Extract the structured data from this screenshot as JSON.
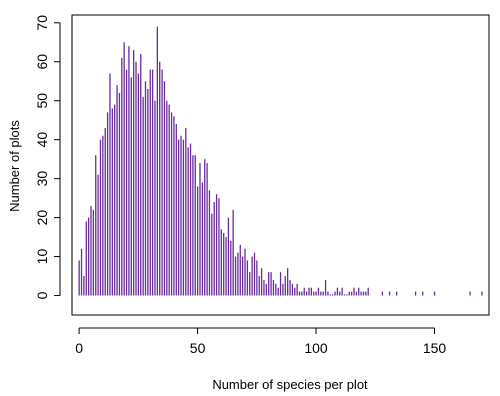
{
  "chart_data": {
    "type": "bar",
    "xlabel": "Number of species per plot",
    "ylabel": "Number of plots",
    "xlim": [
      -3,
      173
    ],
    "ylim": [
      -5,
      72
    ],
    "x_ticks": [
      0,
      50,
      100,
      150
    ],
    "y_ticks": [
      0,
      10,
      20,
      30,
      40,
      50,
      60,
      70
    ],
    "grid": false,
    "legend": "none",
    "bar_color": "#6a2c9a",
    "x": [
      0,
      1,
      2,
      3,
      4,
      5,
      6,
      7,
      8,
      9,
      10,
      11,
      12,
      13,
      14,
      15,
      16,
      17,
      18,
      19,
      20,
      21,
      22,
      23,
      24,
      25,
      26,
      27,
      28,
      29,
      30,
      31,
      32,
      33,
      34,
      35,
      36,
      37,
      38,
      39,
      40,
      41,
      42,
      43,
      44,
      45,
      46,
      47,
      48,
      49,
      50,
      51,
      52,
      53,
      54,
      55,
      56,
      57,
      58,
      59,
      60,
      61,
      62,
      63,
      64,
      65,
      66,
      67,
      68,
      69,
      70,
      71,
      72,
      73,
      74,
      75,
      76,
      77,
      78,
      79,
      80,
      81,
      82,
      83,
      84,
      85,
      86,
      87,
      88,
      89,
      90,
      91,
      92,
      93,
      94,
      95,
      96,
      97,
      98,
      99,
      100,
      101,
      102,
      103,
      104,
      105,
      106,
      107,
      108,
      109,
      110,
      111,
      112,
      113,
      114,
      115,
      116,
      117,
      118,
      119,
      120,
      121,
      122,
      128,
      131,
      134,
      142,
      145,
      150,
      165,
      170
    ],
    "values": [
      9,
      12,
      5,
      19,
      20,
      23,
      22,
      36,
      31,
      40,
      41,
      43,
      47,
      57,
      48,
      49,
      54,
      52,
      61,
      65,
      58,
      64,
      56,
      63,
      60,
      57,
      62,
      51,
      55,
      53,
      58,
      58,
      50,
      69,
      60,
      58,
      55,
      50,
      49,
      47,
      46,
      44,
      40,
      41,
      40,
      43,
      38,
      39,
      36,
      36,
      28,
      34,
      29,
      35,
      34,
      27,
      21,
      24,
      26,
      25,
      17,
      16,
      15,
      20,
      14,
      22,
      10,
      11,
      13,
      10,
      12,
      9,
      6,
      10,
      11,
      9,
      5,
      7,
      4,
      3,
      6,
      6,
      4,
      3,
      2,
      6,
      3,
      5,
      7,
      4,
      3,
      2,
      3,
      1,
      1,
      2,
      1,
      2,
      2,
      1,
      1,
      2,
      1,
      1,
      4,
      1,
      0,
      0,
      1,
      2,
      1,
      2,
      0,
      0,
      1,
      1,
      2,
      1,
      2,
      1,
      1,
      1,
      2,
      1,
      1,
      1,
      1,
      1,
      1,
      1,
      1
    ]
  }
}
